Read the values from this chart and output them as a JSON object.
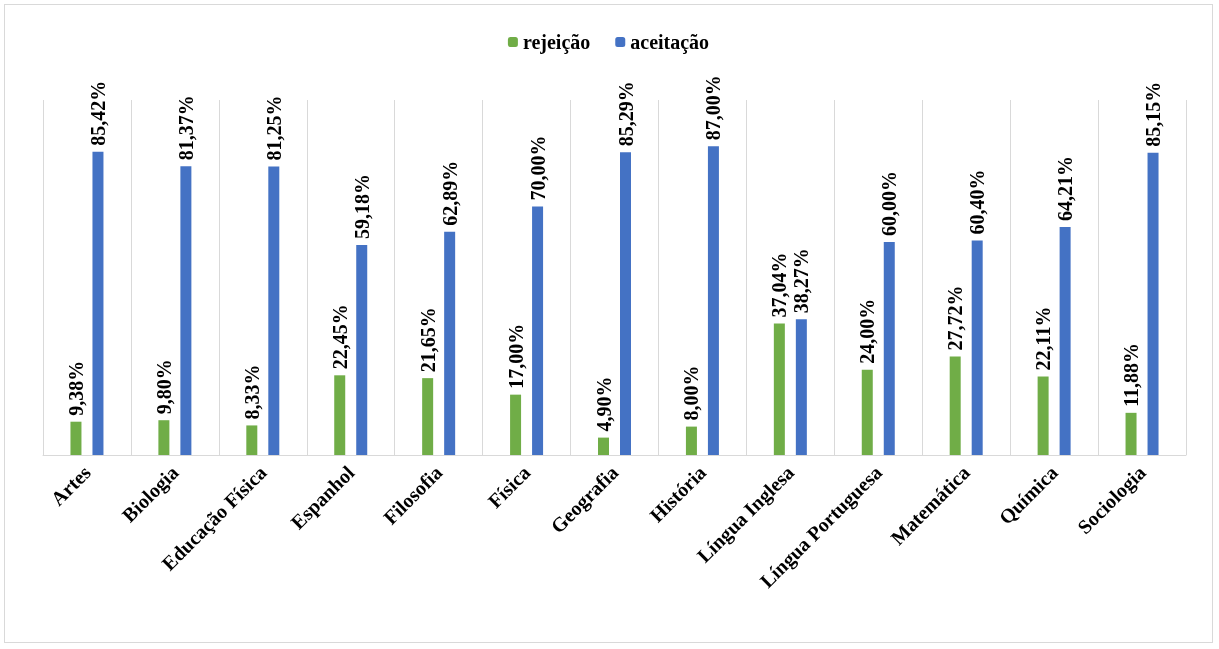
{
  "chart_data": {
    "type": "bar",
    "categories": [
      "Artes",
      "Biologia",
      "Educação Física",
      "Espanhol",
      "Filosofia",
      "Física",
      "Geografia",
      "História",
      "Língua Inglesa",
      "Língua Portuguesa",
      "Matemática",
      "Química",
      "Sociologia"
    ],
    "series": [
      {
        "name": "rejeição",
        "color": "#70ad47",
        "values": [
          9.38,
          9.8,
          8.33,
          22.45,
          21.65,
          17.0,
          4.9,
          8.0,
          37.04,
          24.0,
          27.72,
          22.11,
          11.88
        ],
        "value_labels": [
          "9,38%",
          "9,80%",
          "8,33%",
          "22,45%",
          "21,65%",
          "17,00%",
          "4,90%",
          "8,00%",
          "37,04%",
          "24,00%",
          "27,72%",
          "22,11%",
          "11,88%"
        ]
      },
      {
        "name": "aceitação",
        "color": "#4472c4",
        "values": [
          85.42,
          81.37,
          81.25,
          59.18,
          62.89,
          70.0,
          85.29,
          87.0,
          38.27,
          60.0,
          60.4,
          64.21,
          85.15
        ],
        "value_labels": [
          "85,42%",
          "81,37%",
          "81,25%",
          "59,18%",
          "62,89%",
          "70,00%",
          "85,29%",
          "87,00%",
          "38,27%",
          "60,00%",
          "60,40%",
          "64,21%",
          "85,15%"
        ]
      }
    ],
    "grid": "x",
    "legend": "top"
  }
}
